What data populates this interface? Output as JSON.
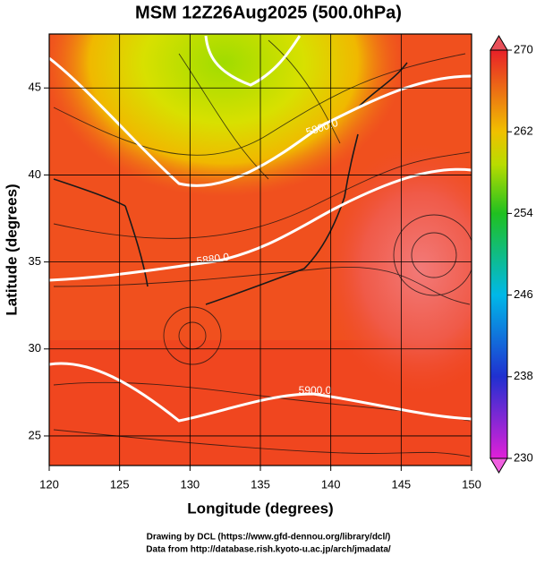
{
  "title": "MSM 12Z26Aug2025 (500.0hPa)",
  "map": {
    "x_label": "Longitude (degrees)",
    "y_label": "Latitude  (degrees)",
    "xlim": [
      120,
      150
    ],
    "ylim": [
      23.3,
      48.1
    ],
    "xticks": [
      120,
      125,
      130,
      135,
      140,
      145,
      150
    ],
    "yticks": [
      25,
      30,
      35,
      40,
      45
    ],
    "grid": true,
    "contour_labels": [
      "5800.0",
      "5880.0",
      "5900.0"
    ]
  },
  "colorbar": {
    "lim": [
      230,
      270
    ],
    "ticks": [
      230,
      238,
      246,
      254,
      262,
      270
    ]
  },
  "footer": [
    "Drawing by DCL (https://www.gfd-dennou.org/library/dcl/)",
    "Data from http://database.rish.kyoto-u.ac.jp/arch/jmadata/"
  ]
}
